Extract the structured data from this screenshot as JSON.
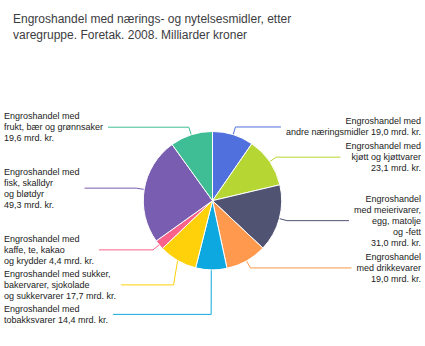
{
  "chart_data": {
    "type": "pie",
    "title": "Engroshandel med nærings- og nytelsesmidler, etter\nvaregruppe. Foretak. 2008. Milliarder kroner",
    "categories": [
      "Engroshandel med\nandre næringsmidler 19,0 mrd. kr.",
      "Engroshandel med\nkjøtt og kjøttvarer\n23,1 mrd. kr.",
      "Engroshandel\nmed meierivarer,\negg, matolje\nog -fett\n31,0 mrd. kr.",
      "Engroshandel\nmed drikkevarer\n19,0 mrd. kr.",
      "Engroshandel med\ntobakksvarer 14,4 mrd. kr.",
      "Engroshandel med sukker,\nbakervarer, sjokolade\nog sukkervarer 17,7 mrd. kr.",
      "Engroshandel med\nkaffe, te, kakao\nog krydder 4,4 mrd. kr.",
      "Engroshandel med\nfisk, skalldyr\nog bløtdyr\n49,3 mrd. kr.",
      "Engroshandel med\nfrukt, bær og grønnsaker\n19,6 mrd. kr."
    ],
    "values": [
      19.0,
      23.1,
      31.0,
      19.0,
      14.4,
      17.7,
      4.4,
      49.3,
      19.6
    ]
  }
}
